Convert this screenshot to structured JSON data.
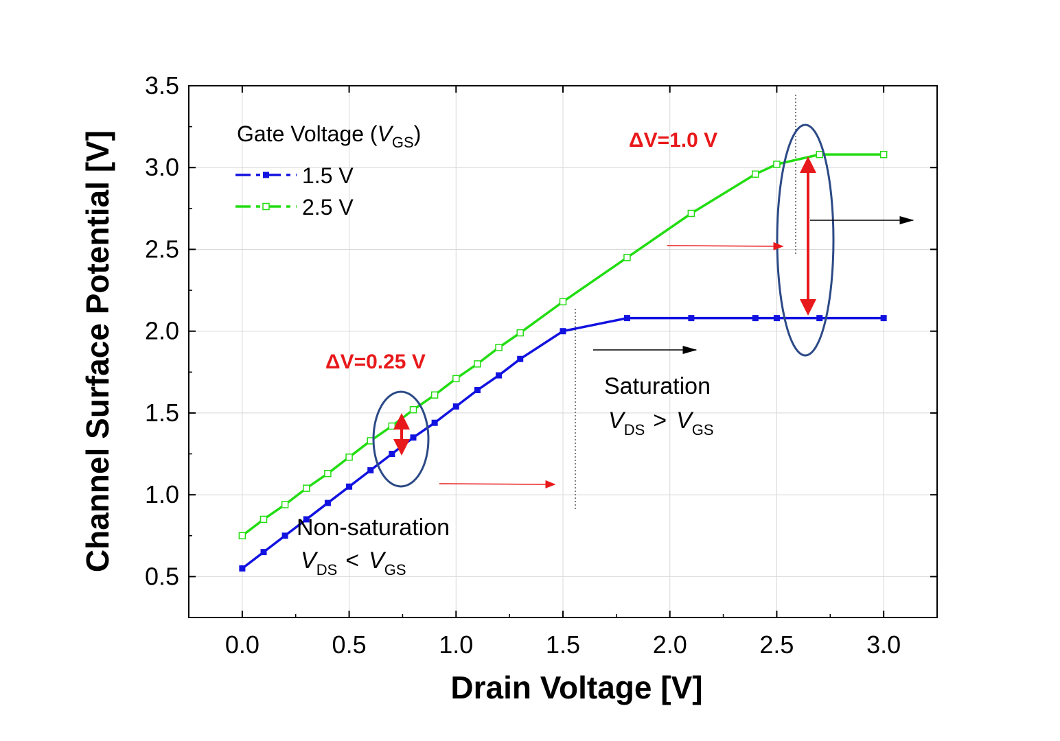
{
  "chart_data": {
    "type": "line",
    "title": "",
    "xlabel": "Drain Voltage [V]",
    "ylabel": "Channel Surface Potential [V]",
    "xlim": [
      -0.25,
      3.25
    ],
    "ylim": [
      0.25,
      3.5
    ],
    "x_ticks": [
      "0.0",
      "0.5",
      "1.0",
      "1.5",
      "2.0",
      "2.5",
      "3.0"
    ],
    "y_ticks": [
      "0.5",
      "1.0",
      "1.5",
      "2.0",
      "2.5",
      "3.0",
      "3.5"
    ],
    "grid": true,
    "legend": {
      "title_prefix": "Gate Voltage (",
      "title_var": "V",
      "title_sub": "GS",
      "title_suffix": ")",
      "placement": "top-left"
    },
    "series": [
      {
        "name": "1.5 V",
        "color": "#1212e0",
        "marker": "filled-square",
        "x": [
          0.0,
          0.1,
          0.2,
          0.3,
          0.4,
          0.5,
          0.6,
          0.7,
          0.8,
          0.9,
          1.0,
          1.1,
          1.2,
          1.3,
          1.5,
          1.8,
          2.1,
          2.4,
          2.5,
          2.7,
          3.0
        ],
        "y": [
          0.55,
          0.65,
          0.75,
          0.85,
          0.95,
          1.05,
          1.15,
          1.25,
          1.35,
          1.44,
          1.54,
          1.64,
          1.73,
          1.83,
          2.0,
          2.08,
          2.08,
          2.08,
          2.08,
          2.08,
          2.08
        ]
      },
      {
        "name": "2.5 V",
        "color": "#22dd11",
        "marker": "open-square",
        "x": [
          0.0,
          0.1,
          0.2,
          0.3,
          0.4,
          0.5,
          0.6,
          0.7,
          0.8,
          0.9,
          1.0,
          1.1,
          1.2,
          1.3,
          1.5,
          1.8,
          2.1,
          2.4,
          2.5,
          2.7,
          3.0
        ],
        "y": [
          0.75,
          0.85,
          0.94,
          1.04,
          1.13,
          1.23,
          1.33,
          1.42,
          1.52,
          1.61,
          1.71,
          1.8,
          1.9,
          1.99,
          2.18,
          2.45,
          2.72,
          2.96,
          3.02,
          3.08,
          3.08
        ]
      }
    ],
    "annotations": {
      "dv_small": "ΔV=0.25 V",
      "dv_large": "ΔV=1.0 V",
      "saturation": "Saturation",
      "non_saturation": "Non-saturation",
      "vds": "V",
      "vds_sub": "DS",
      "vgs": "V",
      "vgs_sub": "GS",
      "gt": ">",
      "lt": "<"
    }
  }
}
